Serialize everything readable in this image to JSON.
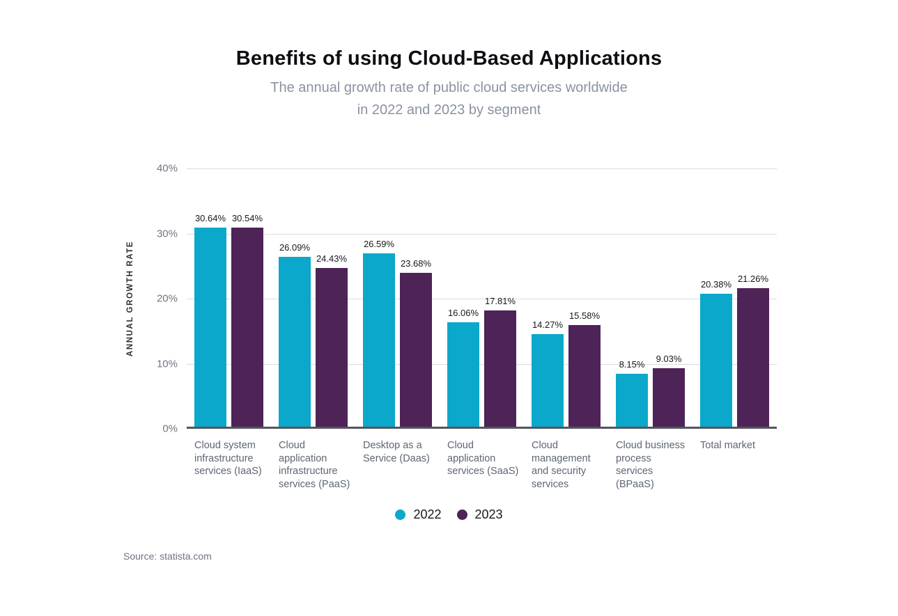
{
  "header": {
    "title": "Benefits of using Cloud-Based Applications",
    "subtitle_lines": [
      "The annual growth rate of public cloud services worldwide",
      "in 2022 and 2023 by segment"
    ]
  },
  "chart_data": {
    "type": "bar",
    "title": "Benefits of using Cloud-Based Applications",
    "subtitle": "The annual growth rate of public cloud services worldwide in 2022 and 2023 by segment",
    "xlabel": "",
    "ylabel": "ANNUAL GROWTH RATE",
    "ylim": [
      0,
      40
    ],
    "grid": true,
    "legend_position": "bottom",
    "yticks": [
      {
        "label": "40%",
        "value": 40
      },
      {
        "label": "30%",
        "value": 30
      },
      {
        "label": "20%",
        "value": 20
      },
      {
        "label": "10%",
        "value": 10
      },
      {
        "label": "0%",
        "value": 0
      }
    ],
    "categories": [
      "Cloud system infrastructure services (IaaS)",
      "Cloud application infrastructure services (PaaS)",
      "Desktop as a Service (Daas)",
      "Cloud application services (SaaS)",
      "Cloud management and security services",
      "Cloud business process services (BPaaS)",
      "Total market"
    ],
    "series": [
      {
        "name": "2022",
        "color": "#0BA8CB",
        "values": [
          30.64,
          26.09,
          26.59,
          16.06,
          14.27,
          8.15,
          20.38
        ],
        "labels": [
          "30.64%",
          "26.09%",
          "26.59%",
          "16.06%",
          "14.27%",
          "8.15%",
          "20.38%"
        ]
      },
      {
        "name": "2023",
        "color": "#4E2357",
        "values": [
          30.54,
          24.43,
          23.68,
          17.81,
          15.58,
          9.03,
          21.26
        ],
        "labels": [
          "30.54%",
          "24.43%",
          "23.68%",
          "17.81%",
          "15.58%",
          "9.03%",
          "21.26%"
        ]
      }
    ]
  },
  "legend": {
    "items": [
      {
        "label": "2022",
        "color": "#0BA8CB"
      },
      {
        "label": "2023",
        "color": "#4E2357"
      }
    ]
  },
  "source": {
    "text": "Source: statista.com"
  }
}
